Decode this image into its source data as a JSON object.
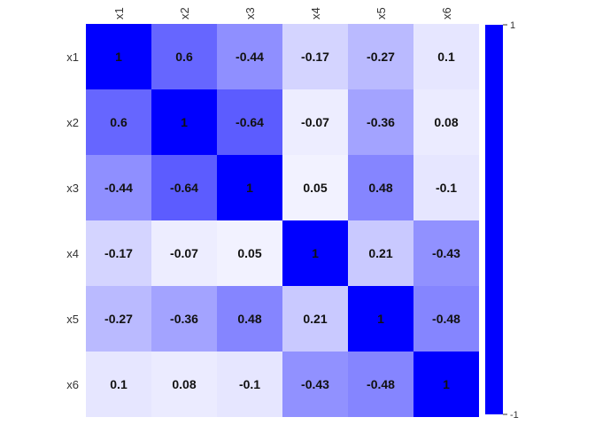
{
  "chart_data": {
    "type": "heatmap",
    "title": "",
    "xlabel": "",
    "ylabel": "",
    "x_categories": [
      "x1",
      "x2",
      "x3",
      "x4",
      "x5",
      "x6"
    ],
    "y_categories": [
      "x1",
      "x2",
      "x3",
      "x4",
      "x5",
      "x6"
    ],
    "values": [
      [
        1,
        0.6,
        -0.44,
        -0.17,
        -0.27,
        0.1
      ],
      [
        0.6,
        1,
        -0.64,
        -0.07,
        -0.36,
        0.08
      ],
      [
        -0.44,
        -0.64,
        1,
        0.05,
        0.48,
        -0.1
      ],
      [
        -0.17,
        -0.07,
        0.05,
        1,
        0.21,
        -0.43
      ],
      [
        -0.27,
        -0.36,
        0.48,
        0.21,
        1,
        -0.48
      ],
      [
        0.1,
        0.08,
        -0.1,
        -0.43,
        -0.48,
        1
      ]
    ],
    "value_labels": [
      [
        "1",
        "0.6",
        "-0.44",
        "-0.17",
        "-0.27",
        "0.1"
      ],
      [
        "0.6",
        "1",
        "-0.64",
        "-0.07",
        "-0.36",
        "0.08"
      ],
      [
        "-0.44",
        "-0.64",
        "1",
        "0.05",
        "0.48",
        "-0.1"
      ],
      [
        "-0.17",
        "-0.07",
        "0.05",
        "1",
        "0.21",
        "-0.43"
      ],
      [
        "-0.27",
        "-0.36",
        "0.48",
        "0.21",
        "1",
        "-0.48"
      ],
      [
        "0.1",
        "0.08",
        "-0.1",
        "-0.43",
        "-0.48",
        "1"
      ]
    ],
    "color_scale": {
      "min": -1,
      "max": 1,
      "low_color": "#0000ff",
      "mid_color": "#ffffff",
      "high_color": "#0000ff",
      "encoding": "absolute value"
    },
    "colorbar": {
      "max_label": "1",
      "min_label": "-1",
      "color": "#0000ff"
    },
    "grid": false,
    "legend_position": "right"
  }
}
